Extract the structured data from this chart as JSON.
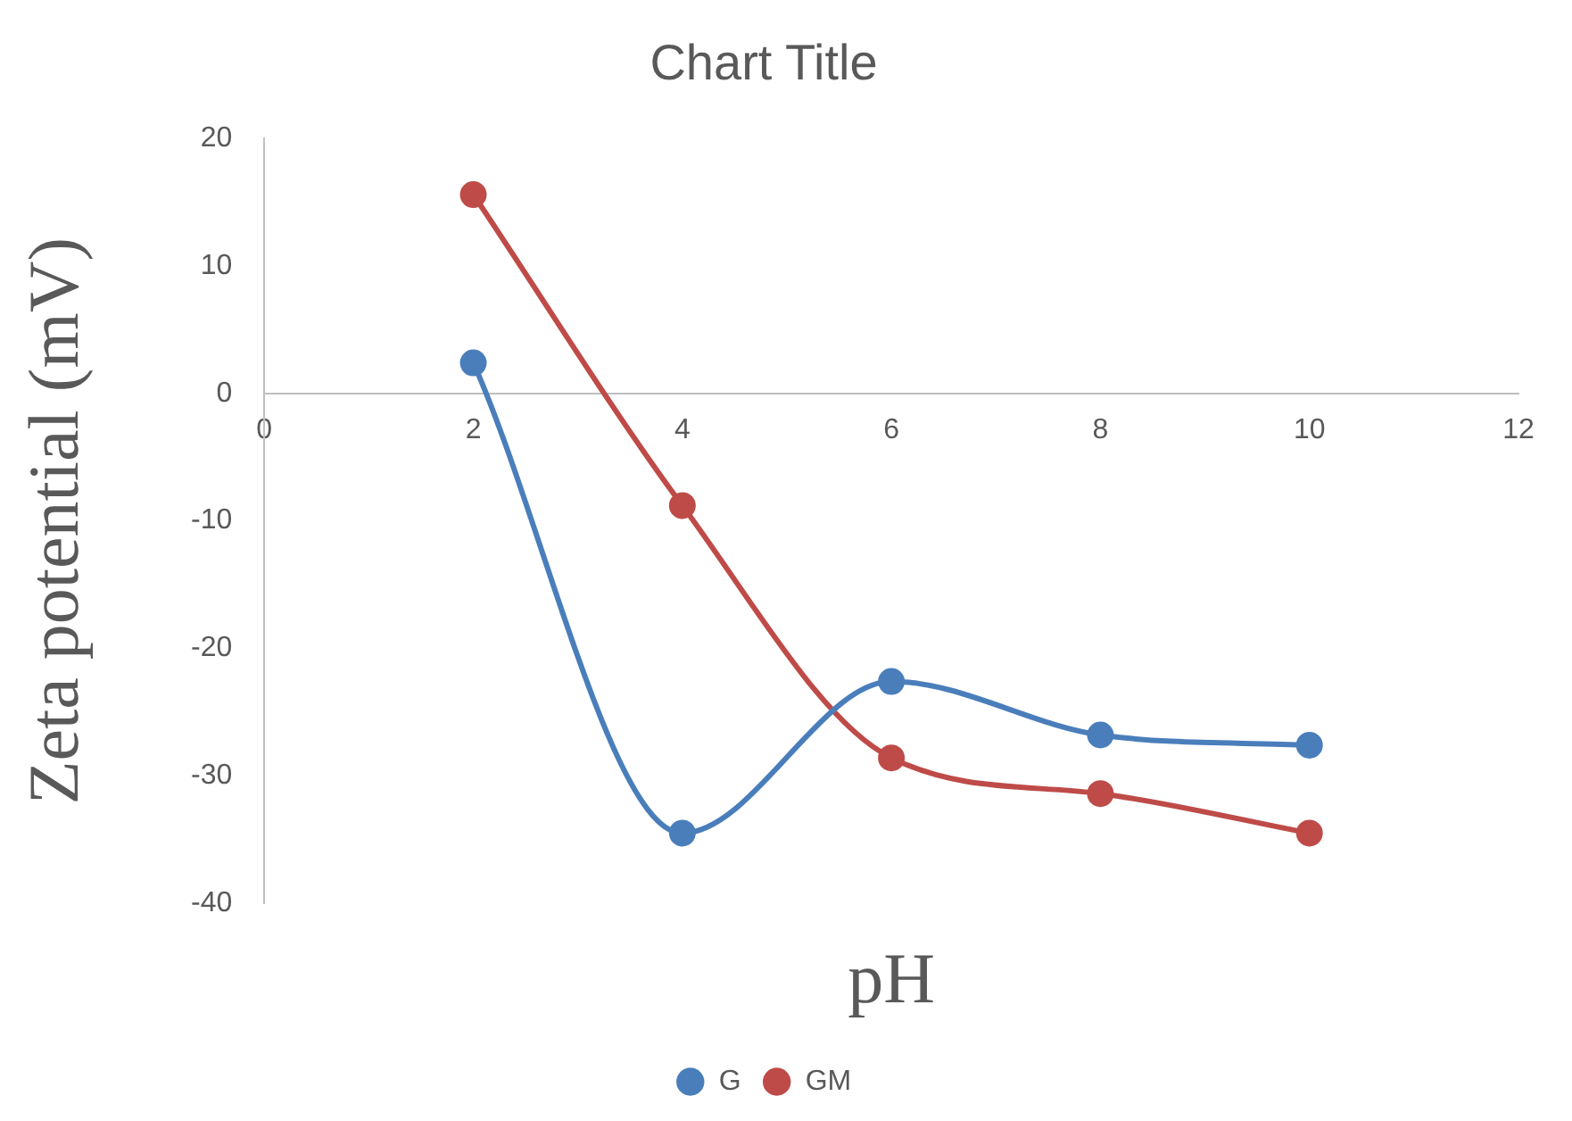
{
  "chart_data": {
    "type": "line",
    "title": "Chart Title",
    "xlabel": "pH",
    "ylabel": "Zeta potential (mV)",
    "x": [
      2,
      4,
      6,
      8,
      10
    ],
    "series": [
      {
        "name": "G",
        "color": "#4a7ebb",
        "values": [
          2.4,
          -34.5,
          -22.6,
          -26.8,
          -27.6
        ]
      },
      {
        "name": "GM",
        "color": "#be4b48",
        "values": [
          15.6,
          -8.8,
          -28.6,
          -31.4,
          -34.5
        ]
      }
    ],
    "xlim": [
      0,
      12
    ],
    "xticks": [
      0,
      2,
      4,
      6,
      8,
      10,
      12
    ],
    "ylim": [
      -40,
      20
    ],
    "yticks": [
      -40,
      -30,
      -20,
      -10,
      0,
      10,
      20
    ],
    "grid": false,
    "legend": "bottom",
    "marker": "circle",
    "line_style": "solid"
  }
}
